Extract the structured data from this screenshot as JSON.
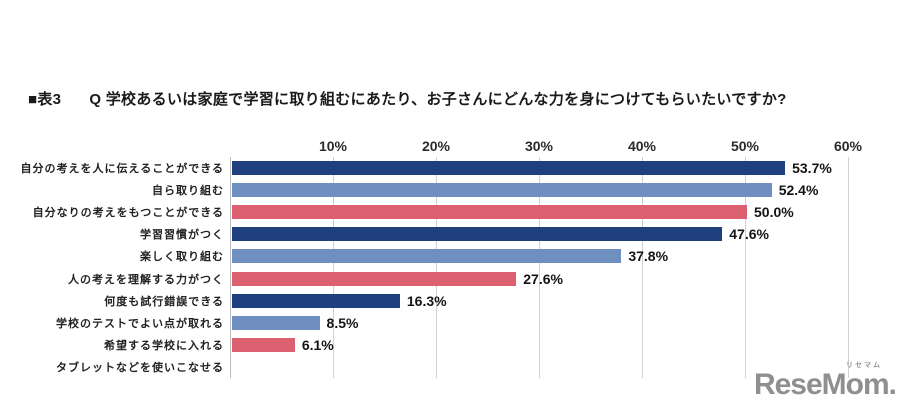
{
  "title": {
    "table_label": "■表3",
    "question": "Q 学校あるいは家庭で学習に取り組むにあたり、お子さんにどんな力を身につけてもらいたいですか?"
  },
  "watermark": {
    "kana": "リセマム",
    "logo": "ReseMom."
  },
  "colors": {
    "dark_blue": "#1f3f7e",
    "light_blue": "#6e8fbf",
    "pink": "#dd6070",
    "gridline": "#cfcfd4",
    "axis_line": "#b9b9bf"
  },
  "chart_data": {
    "type": "bar",
    "orientation": "horizontal",
    "title": "■表3 Q 学校あるいは家庭で学習に取り組むにあたり、お子さんにどんな力を身につけてもらいたいですか?",
    "xlabel": "",
    "ylabel": "",
    "xlim": [
      0,
      60
    ],
    "grid": true,
    "axis_ticks": [
      {
        "label": "10%",
        "value": 10
      },
      {
        "label": "20%",
        "value": 20
      },
      {
        "label": "30%",
        "value": 30
      },
      {
        "label": "40%",
        "value": 40
      },
      {
        "label": "50%",
        "value": 50
      },
      {
        "label": "60%",
        "value": 60
      }
    ],
    "categories": [
      "自分の考えを人に伝えることができる",
      "自ら取り組む",
      "自分なりの考えをもつことができる",
      "学習習慣がつく",
      "楽しく取り組む",
      "人の考えを理解する力がつく",
      "何度も試行錯誤できる",
      "学校のテストでよい点が取れる",
      "希望する学校に入れる",
      "タブレットなどを使いこなせる"
    ],
    "values": [
      53.7,
      52.4,
      50.0,
      47.6,
      37.8,
      27.6,
      16.3,
      8.5,
      6.1,
      null
    ],
    "value_labels": [
      "53.7%",
      "52.4%",
      "50.0%",
      "47.6%",
      "37.8%",
      "27.6%",
      "16.3%",
      "8.5%",
      "6.1%",
      ""
    ],
    "bar_color_keys": [
      "dark_blue",
      "light_blue",
      "pink",
      "dark_blue",
      "light_blue",
      "pink",
      "dark_blue",
      "light_blue",
      "pink",
      "dark_blue"
    ],
    "legend": null
  }
}
